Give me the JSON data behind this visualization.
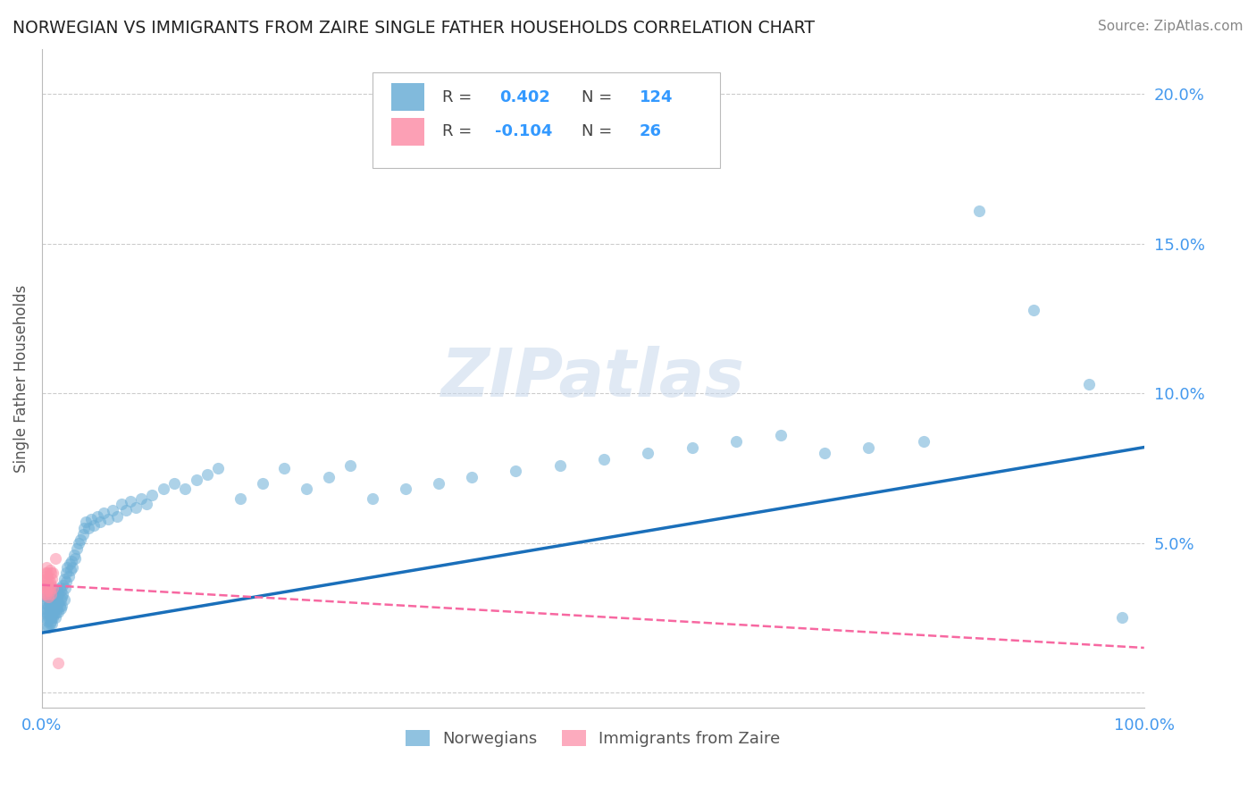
{
  "title": "NORWEGIAN VS IMMIGRANTS FROM ZAIRE SINGLE FATHER HOUSEHOLDS CORRELATION CHART",
  "source": "Source: ZipAtlas.com",
  "ylabel": "Single Father Households",
  "xlabel": "",
  "xlim": [
    0.0,
    1.0
  ],
  "ylim": [
    -0.005,
    0.215
  ],
  "yticks": [
    0.0,
    0.05,
    0.1,
    0.15,
    0.2
  ],
  "ytick_labels": [
    "",
    "5.0%",
    "10.0%",
    "15.0%",
    "20.0%"
  ],
  "xticks": [
    0.0,
    0.25,
    0.5,
    0.75,
    1.0
  ],
  "xtick_labels": [
    "0.0%",
    "",
    "",
    "",
    "100.0%"
  ],
  "norwegian_color": "#6baed6",
  "immigrant_color": "#fc8fa8",
  "trendline_norwegian_color": "#1a6fba",
  "trendline_immigrant_color": "#f768a1",
  "R_norwegian": 0.402,
  "N_norwegian": 124,
  "R_immigrant": -0.104,
  "N_immigrant": 26,
  "watermark": "ZIPatlas",
  "background_color": "#ffffff",
  "grid_color": "#cccccc",
  "legend_labels": [
    "Norwegians",
    "Immigrants from Zaire"
  ],
  "nor_trend_x0": 0.0,
  "nor_trend_y0": 0.02,
  "nor_trend_x1": 1.0,
  "nor_trend_y1": 0.082,
  "imm_trend_x0": 0.0,
  "imm_trend_y0": 0.036,
  "imm_trend_x1": 1.0,
  "imm_trend_y1": 0.015,
  "norwegian_x": [
    0.002,
    0.003,
    0.003,
    0.004,
    0.004,
    0.004,
    0.005,
    0.005,
    0.005,
    0.005,
    0.006,
    0.006,
    0.006,
    0.006,
    0.007,
    0.007,
    0.007,
    0.007,
    0.007,
    0.008,
    0.008,
    0.008,
    0.008,
    0.008,
    0.009,
    0.009,
    0.009,
    0.009,
    0.01,
    0.01,
    0.01,
    0.01,
    0.01,
    0.011,
    0.011,
    0.011,
    0.011,
    0.012,
    0.012,
    0.012,
    0.012,
    0.013,
    0.013,
    0.013,
    0.014,
    0.014,
    0.014,
    0.015,
    0.015,
    0.015,
    0.016,
    0.016,
    0.017,
    0.017,
    0.017,
    0.018,
    0.018,
    0.019,
    0.019,
    0.02,
    0.02,
    0.021,
    0.022,
    0.022,
    0.023,
    0.024,
    0.025,
    0.026,
    0.027,
    0.028,
    0.029,
    0.03,
    0.032,
    0.033,
    0.035,
    0.037,
    0.038,
    0.04,
    0.042,
    0.045,
    0.047,
    0.05,
    0.053,
    0.056,
    0.06,
    0.064,
    0.068,
    0.072,
    0.076,
    0.08,
    0.085,
    0.09,
    0.095,
    0.1,
    0.11,
    0.12,
    0.13,
    0.14,
    0.15,
    0.16,
    0.18,
    0.2,
    0.22,
    0.24,
    0.26,
    0.28,
    0.3,
    0.33,
    0.36,
    0.39,
    0.43,
    0.47,
    0.51,
    0.55,
    0.59,
    0.63,
    0.67,
    0.71,
    0.75,
    0.8,
    0.85,
    0.9,
    0.95,
    0.98
  ],
  "norwegian_y": [
    0.028,
    0.025,
    0.03,
    0.022,
    0.027,
    0.032,
    0.024,
    0.028,
    0.031,
    0.026,
    0.025,
    0.029,
    0.022,
    0.035,
    0.026,
    0.03,
    0.023,
    0.028,
    0.033,
    0.024,
    0.027,
    0.031,
    0.025,
    0.029,
    0.026,
    0.03,
    0.023,
    0.035,
    0.028,
    0.025,
    0.032,
    0.027,
    0.03,
    0.029,
    0.026,
    0.033,
    0.031,
    0.028,
    0.032,
    0.025,
    0.03,
    0.027,
    0.033,
    0.029,
    0.028,
    0.034,
    0.031,
    0.03,
    0.027,
    0.033,
    0.029,
    0.035,
    0.031,
    0.028,
    0.034,
    0.032,
    0.029,
    0.036,
    0.033,
    0.031,
    0.038,
    0.035,
    0.04,
    0.037,
    0.042,
    0.039,
    0.043,
    0.041,
    0.044,
    0.042,
    0.046,
    0.045,
    0.048,
    0.05,
    0.051,
    0.053,
    0.055,
    0.057,
    0.055,
    0.058,
    0.056,
    0.059,
    0.057,
    0.06,
    0.058,
    0.061,
    0.059,
    0.063,
    0.061,
    0.064,
    0.062,
    0.065,
    0.063,
    0.066,
    0.068,
    0.07,
    0.068,
    0.071,
    0.073,
    0.075,
    0.065,
    0.07,
    0.075,
    0.068,
    0.072,
    0.076,
    0.065,
    0.068,
    0.07,
    0.072,
    0.074,
    0.076,
    0.078,
    0.08,
    0.082,
    0.084,
    0.086,
    0.08,
    0.082,
    0.084,
    0.161,
    0.128,
    0.103,
    0.025
  ],
  "immigrant_x": [
    0.002,
    0.002,
    0.003,
    0.003,
    0.003,
    0.004,
    0.004,
    0.004,
    0.004,
    0.005,
    0.005,
    0.005,
    0.006,
    0.006,
    0.006,
    0.007,
    0.007,
    0.007,
    0.008,
    0.008,
    0.008,
    0.009,
    0.01,
    0.01,
    0.012,
    0.015
  ],
  "immigrant_y": [
    0.036,
    0.033,
    0.038,
    0.035,
    0.04,
    0.033,
    0.036,
    0.039,
    0.042,
    0.034,
    0.037,
    0.04,
    0.032,
    0.035,
    0.038,
    0.034,
    0.037,
    0.041,
    0.033,
    0.036,
    0.04,
    0.038,
    0.035,
    0.04,
    0.045,
    0.01
  ]
}
